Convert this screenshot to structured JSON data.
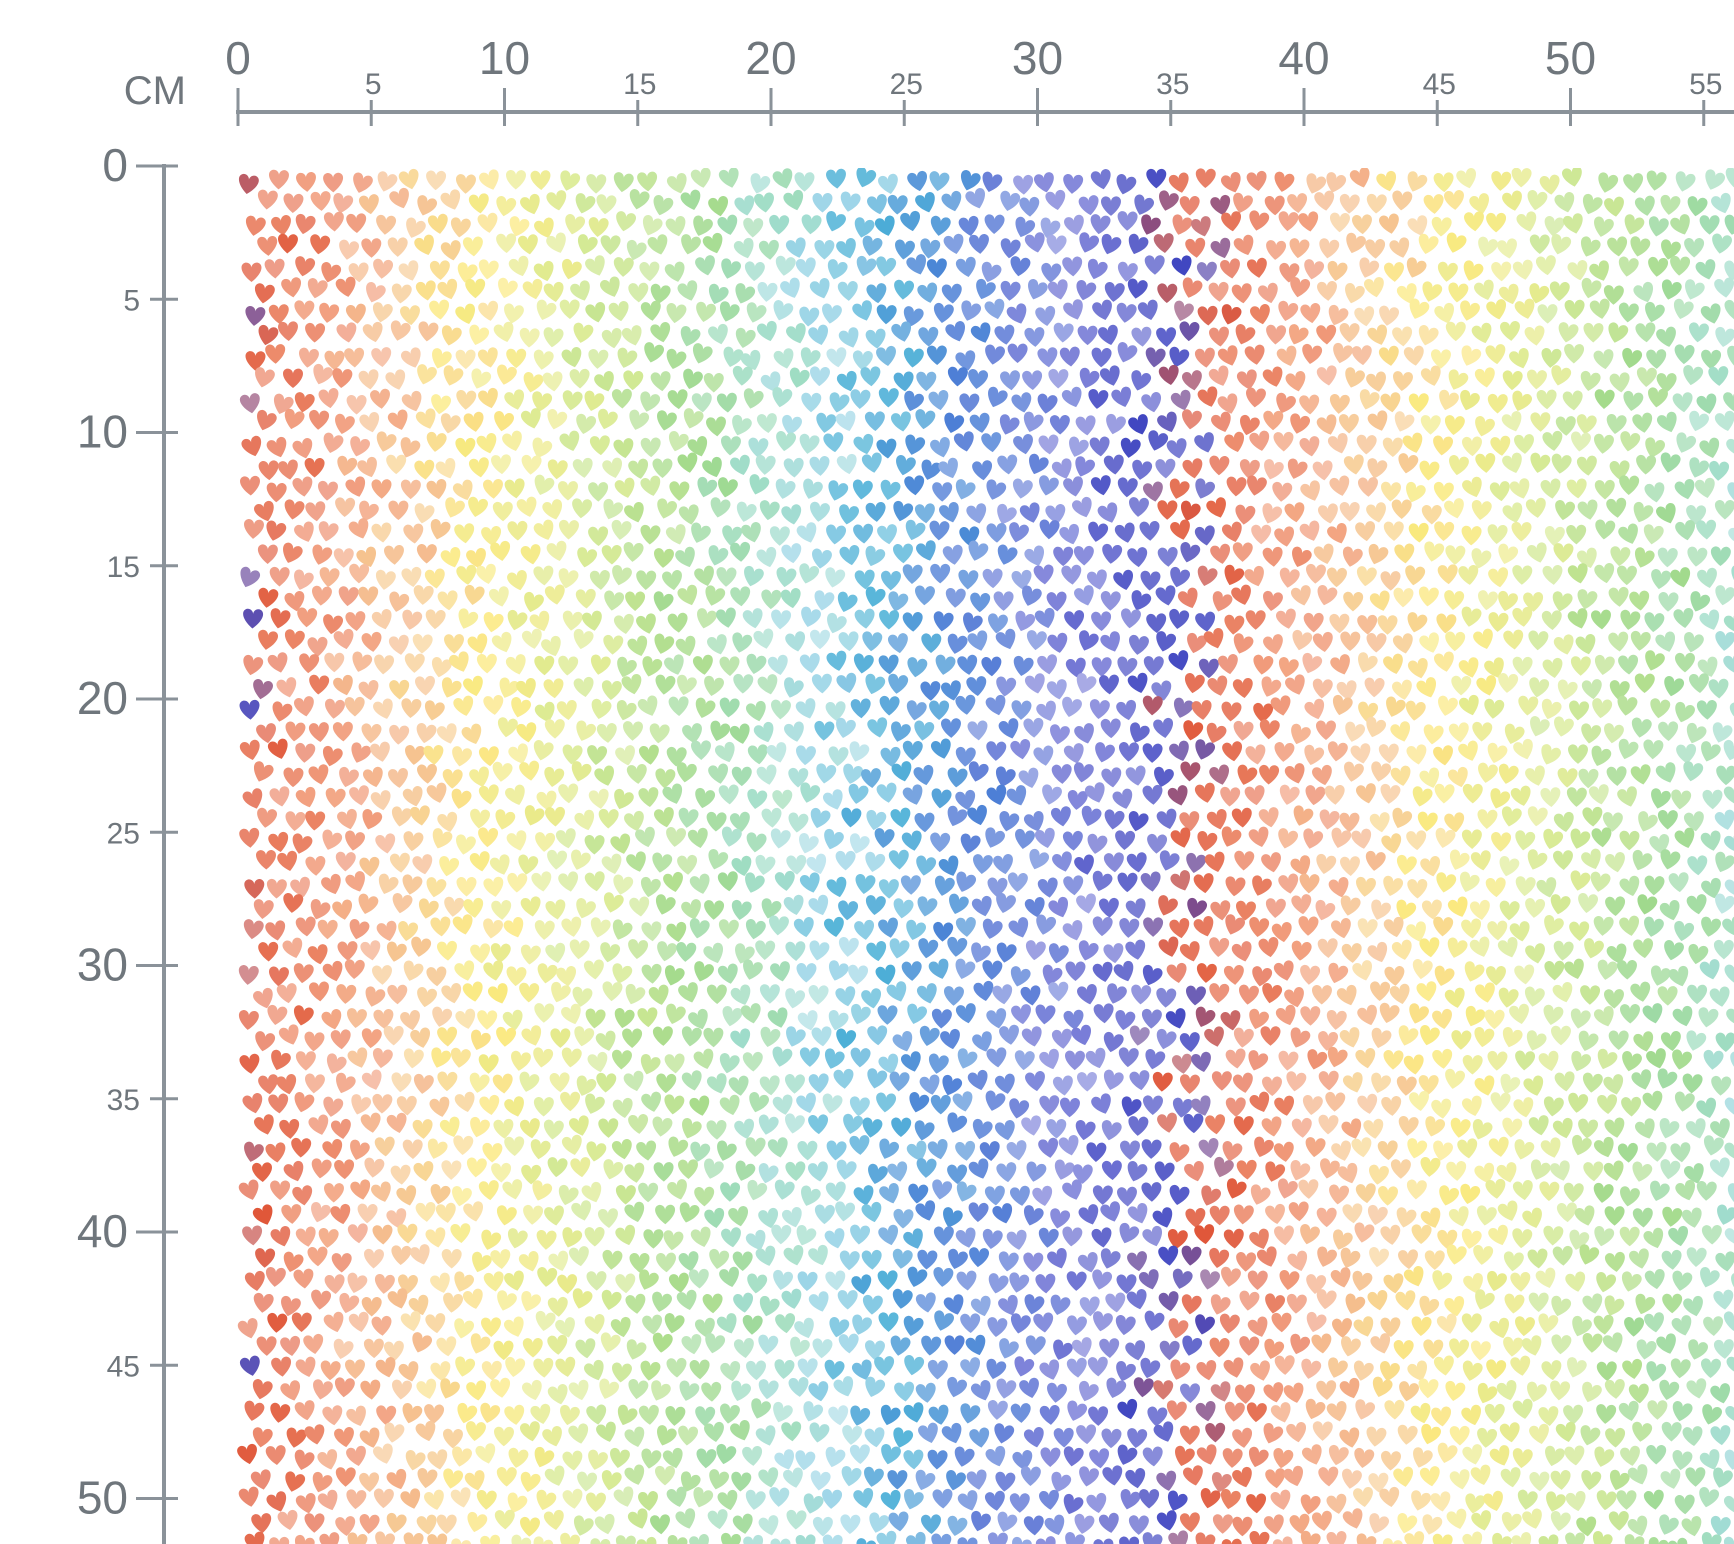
{
  "ruler": {
    "unit": "CM",
    "top": [
      0,
      5,
      10,
      15,
      20,
      25,
      30,
      35,
      40,
      45,
      50,
      55
    ],
    "left": [
      0,
      5,
      10,
      15,
      20,
      25,
      30,
      35,
      40,
      45,
      50
    ]
  }
}
